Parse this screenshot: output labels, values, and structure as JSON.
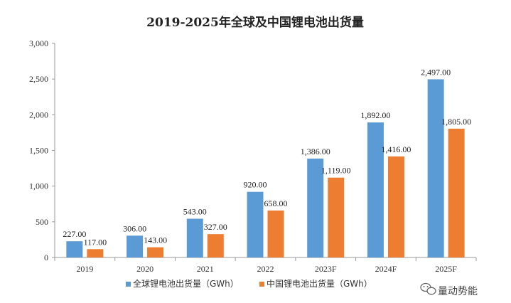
{
  "chart_data": {
    "type": "bar",
    "title": "2019-2025年全球及中国锂电池出货量",
    "categories": [
      "2019",
      "2020",
      "2021",
      "2022",
      "2023F",
      "2024F",
      "2025F"
    ],
    "series": [
      {
        "name": "全球锂电池出货量（GWh）",
        "color": "#5B9BD5",
        "values": [
          227.0,
          306.0,
          543.0,
          920.0,
          1386.0,
          1892.0,
          2497.0
        ]
      },
      {
        "name": "中国锂电池出货量（GWh）",
        "color": "#ED7D31",
        "values": [
          117.0,
          143.0,
          327.0,
          658.0,
          1119.0,
          1416.0,
          1805.0
        ]
      }
    ],
    "ylim": [
      0,
      3000
    ],
    "yticks": [
      0,
      500,
      1000,
      1500,
      2000,
      2500,
      3000
    ],
    "xlabel": "",
    "ylabel": "",
    "grid": false,
    "legend": "bottom"
  },
  "watermark": {
    "text": "量动势能",
    "icon": "wechat-icon"
  }
}
